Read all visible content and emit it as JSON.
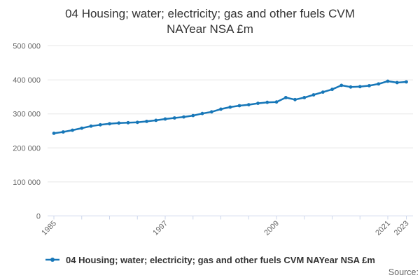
{
  "title": {
    "line1": "04 Housing; water; electricity; gas and other fuels CVM",
    "line2": "NAYear NSA £m",
    "full": "04 Housing; water; electricity; gas and other fuels CVM NAYear NSA £m"
  },
  "legend": {
    "label": "04 Housing; water; electricity; gas and other fuels CVM NAYear NSA £m"
  },
  "source": {
    "label": "Source:"
  },
  "colors": {
    "series": "#1777b8",
    "gridline": "#e6e6e6",
    "axis": "#ccd6eb",
    "title_text": "#333333",
    "tick_text": "#666666",
    "source_text": "#666666",
    "background": "#ffffff"
  },
  "chart_data": {
    "type": "line",
    "title": "04 Housing; water; electricity; gas and other fuels CVM NAYear NSA £m",
    "xlabel": "",
    "ylabel": "",
    "grid": "horizontal",
    "legend_position": "bottom",
    "marker": "circle",
    "ylim": [
      0,
      500000
    ],
    "ytick_values": [
      0,
      100000,
      200000,
      300000,
      400000,
      500000
    ],
    "ytick_labels": [
      "0",
      "100 000",
      "200 000",
      "300 000",
      "400 000",
      "500 000"
    ],
    "xtick_values": [
      1985,
      1988,
      1991,
      1994,
      1997,
      2000,
      2003,
      2006,
      2009,
      2012,
      2015,
      2018,
      2021,
      2023
    ],
    "xtick_labeled": [
      1985,
      1997,
      2009,
      2021,
      2023
    ],
    "series": [
      {
        "name": "04 Housing; water; electricity; gas and other fuels CVM NAYear NSA £m",
        "color": "#1777b8",
        "x": [
          1985,
          1986,
          1987,
          1988,
          1989,
          1990,
          1991,
          1992,
          1993,
          1994,
          1995,
          1996,
          1997,
          1998,
          1999,
          2000,
          2001,
          2002,
          2003,
          2004,
          2005,
          2006,
          2007,
          2008,
          2009,
          2010,
          2011,
          2012,
          2013,
          2014,
          2015,
          2016,
          2017,
          2018,
          2019,
          2020,
          2021,
          2022,
          2023
        ],
        "values": [
          243000,
          247000,
          252000,
          258000,
          264000,
          268000,
          271000,
          273000,
          274000,
          275000,
          278000,
          281000,
          285000,
          288000,
          291000,
          295000,
          301000,
          306000,
          314000,
          320000,
          324000,
          327000,
          331000,
          334000,
          335000,
          348000,
          342000,
          348000,
          356000,
          364000,
          372000,
          384000,
          379000,
          380000,
          383000,
          388000,
          396000,
          392000,
          394000
        ]
      }
    ]
  }
}
